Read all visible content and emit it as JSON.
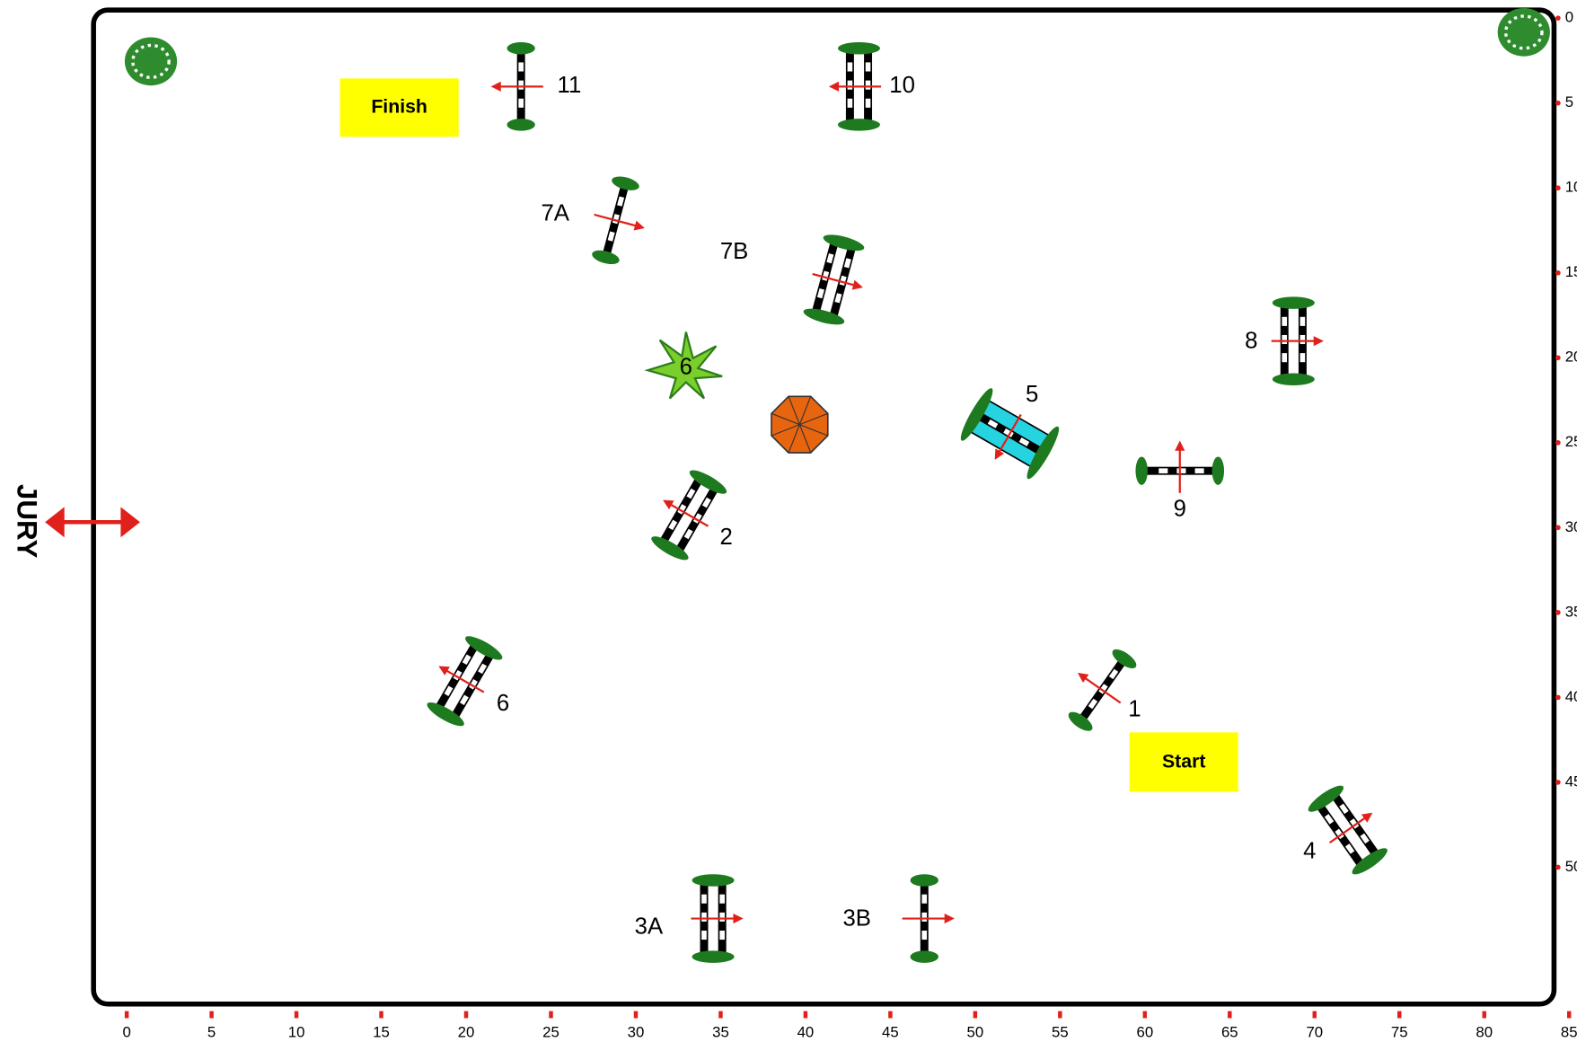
{
  "jury": "JURY",
  "finish": "Finish",
  "start": "Start",
  "plant_label": "6",
  "x_axis": {
    "ticks": [
      0,
      5,
      10,
      15,
      20,
      25,
      30,
      35,
      40,
      45,
      50,
      55,
      60,
      65,
      70,
      75,
      80,
      85
    ]
  },
  "y_axis": {
    "ticks": [
      0,
      5,
      10,
      15,
      20,
      25,
      30,
      35,
      40,
      45,
      50
    ]
  },
  "obstacles": [
    {
      "label": "1"
    },
    {
      "label": "2"
    },
    {
      "label": "3A"
    },
    {
      "label": "3B"
    },
    {
      "label": "4"
    },
    {
      "label": "5"
    },
    {
      "label": "6"
    },
    {
      "label": "7A"
    },
    {
      "label": "7B"
    },
    {
      "label": "8"
    },
    {
      "label": "9"
    },
    {
      "label": "10"
    },
    {
      "label": "11"
    }
  ]
}
